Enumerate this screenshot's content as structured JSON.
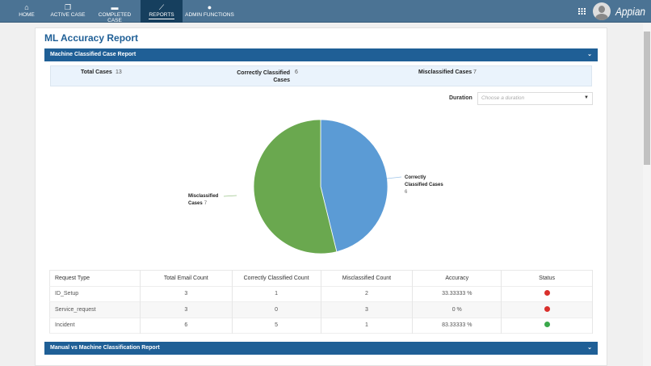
{
  "nav": {
    "tabs": [
      {
        "label": "HOME",
        "icon": "home-icon"
      },
      {
        "label": "ACTIVE CASE",
        "icon": "copy-icon"
      },
      {
        "label": "COMPLETED CASE",
        "icon": "briefcase-icon"
      },
      {
        "label": "REPORTS",
        "icon": "chart-icon",
        "active": true
      },
      {
        "label": "ADMIN FUNCTIONS",
        "icon": "user-icon"
      }
    ],
    "logo": "Appian"
  },
  "page_title": "ML Accuracy Report",
  "section1": {
    "title": "Machine Classified Case Report"
  },
  "summary": {
    "total_label": "Total Cases",
    "total": "13",
    "correct_label": "Correctly Classified Cases",
    "correct": "6",
    "mis_label": "Misclassified Cases",
    "mis": "7"
  },
  "duration": {
    "label": "Duration",
    "placeholder": "Choose a duration"
  },
  "chart_data": {
    "type": "pie",
    "slices": [
      {
        "label": "Correctly Classified Cases",
        "value": 6,
        "color": "#5b9bd5"
      },
      {
        "label": "Misclassified Cases",
        "value": 7,
        "color": "#6aa84f"
      }
    ]
  },
  "table": {
    "headers": [
      "Request Type",
      "Total Email Count",
      "Correctly Classified Count",
      "Misclassified Count",
      "Accuracy",
      "Status"
    ],
    "rows": [
      [
        "ID_Setup",
        "3",
        "1",
        "2",
        "33.33333 %",
        "sad"
      ],
      [
        "Service_request",
        "3",
        "0",
        "3",
        "0 %",
        "sad"
      ],
      [
        "Incident",
        "6",
        "5",
        "1",
        "83.33333 %",
        "happy"
      ]
    ]
  },
  "status_colors": {
    "sad": "#d9302c",
    "happy": "#3aa84a"
  },
  "section2": {
    "title": "Manual vs Machine Classification Report"
  }
}
